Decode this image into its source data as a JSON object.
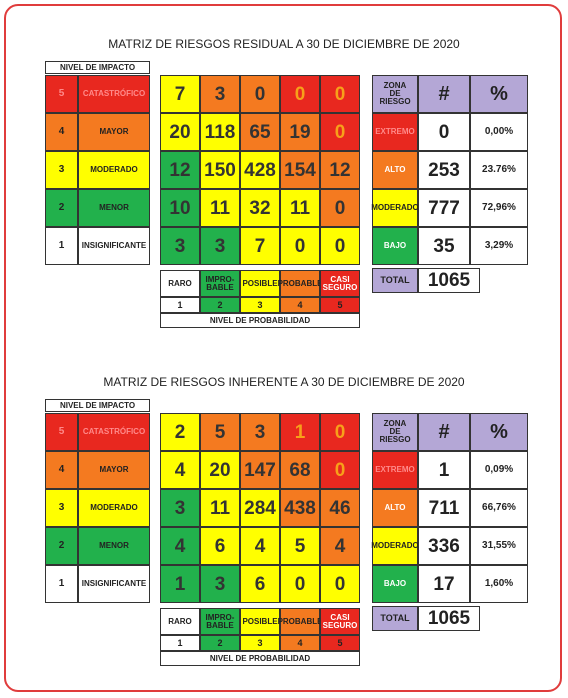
{
  "matrices": [
    {
      "title": "MATRIZ DE RIESGOS RESIDUAL A 30 DE DICIEMBRE DE 2020",
      "impact_header": "NIVEL DE IMPACTO",
      "impact_levels": [
        {
          "level": "5",
          "label": "CATASTRÓFICO"
        },
        {
          "level": "4",
          "label": "MAYOR"
        },
        {
          "level": "3",
          "label": "MODERADO"
        },
        {
          "level": "2",
          "label": "MENOR"
        },
        {
          "level": "1",
          "label": "INSIGNIFICANTE"
        }
      ],
      "grid": [
        [
          7,
          3,
          0,
          0,
          0
        ],
        [
          20,
          118,
          65,
          19,
          0
        ],
        [
          12,
          150,
          428,
          154,
          12
        ],
        [
          10,
          11,
          32,
          11,
          0
        ],
        [
          3,
          3,
          7,
          0,
          0
        ]
      ],
      "probability": [
        {
          "label": "RARO",
          "level": "1"
        },
        {
          "label": "IMPRO-\nBABLE",
          "level": "2"
        },
        {
          "label": "POSIBLE",
          "level": "3"
        },
        {
          "label": "PROBABLE",
          "level": "4"
        },
        {
          "label": "CASI\nSEGURO",
          "level": "5"
        }
      ],
      "probability_header": "NIVEL DE PROBABILIDAD",
      "zone_headers": [
        "ZONA\nDE\nRIESGO",
        "#",
        "%"
      ],
      "zones": [
        {
          "name": "EXTREMO",
          "count": 0,
          "percent": "0,00%"
        },
        {
          "name": "ALTO",
          "count": 253,
          "percent": "23.76%"
        },
        {
          "name": "MODERADO",
          "count": 777,
          "percent": "72,96%"
        },
        {
          "name": "BAJO",
          "count": 35,
          "percent": "3,29%"
        }
      ],
      "total_label": "TOTAL",
      "total": 1065
    },
    {
      "title": "MATRIZ DE RIESGOS INHERENTE A 30 DE DICIEMBRE DE 2020",
      "impact_header": "NIVEL DE IMPACTO",
      "impact_levels": [
        {
          "level": "5",
          "label": "CATASTRÓFICO"
        },
        {
          "level": "4",
          "label": "MAYOR"
        },
        {
          "level": "3",
          "label": "MODERADO"
        },
        {
          "level": "2",
          "label": "MENOR"
        },
        {
          "level": "1",
          "label": "INSIGNIFICANTE"
        }
      ],
      "grid": [
        [
          2,
          5,
          3,
          1,
          0
        ],
        [
          4,
          20,
          147,
          68,
          0
        ],
        [
          3,
          11,
          284,
          438,
          46
        ],
        [
          4,
          6,
          4,
          5,
          4
        ],
        [
          1,
          3,
          6,
          0,
          0
        ]
      ],
      "probability": [
        {
          "label": "RARO",
          "level": "1"
        },
        {
          "label": "IMPRO-\nBABLE",
          "level": "2"
        },
        {
          "label": "POSIBLE",
          "level": "3"
        },
        {
          "label": "PROBABLE",
          "level": "4"
        },
        {
          "label": "CASI\nSEGURO",
          "level": "5"
        }
      ],
      "probability_header": "NIVEL DE PROBABILIDAD",
      "zone_headers": [
        "ZONA\nDE\nRIESGO",
        "#",
        "%"
      ],
      "zones": [
        {
          "name": "EXTREMO",
          "count": 1,
          "percent": "0,09%"
        },
        {
          "name": "ALTO",
          "count": 711,
          "percent": "66,76%"
        },
        {
          "name": "MODERADO",
          "count": 336,
          "percent": "31,55%"
        },
        {
          "name": "BAJO",
          "count": 17,
          "percent": "1,60%"
        }
      ],
      "total_label": "TOTAL",
      "total": 1065
    }
  ]
}
